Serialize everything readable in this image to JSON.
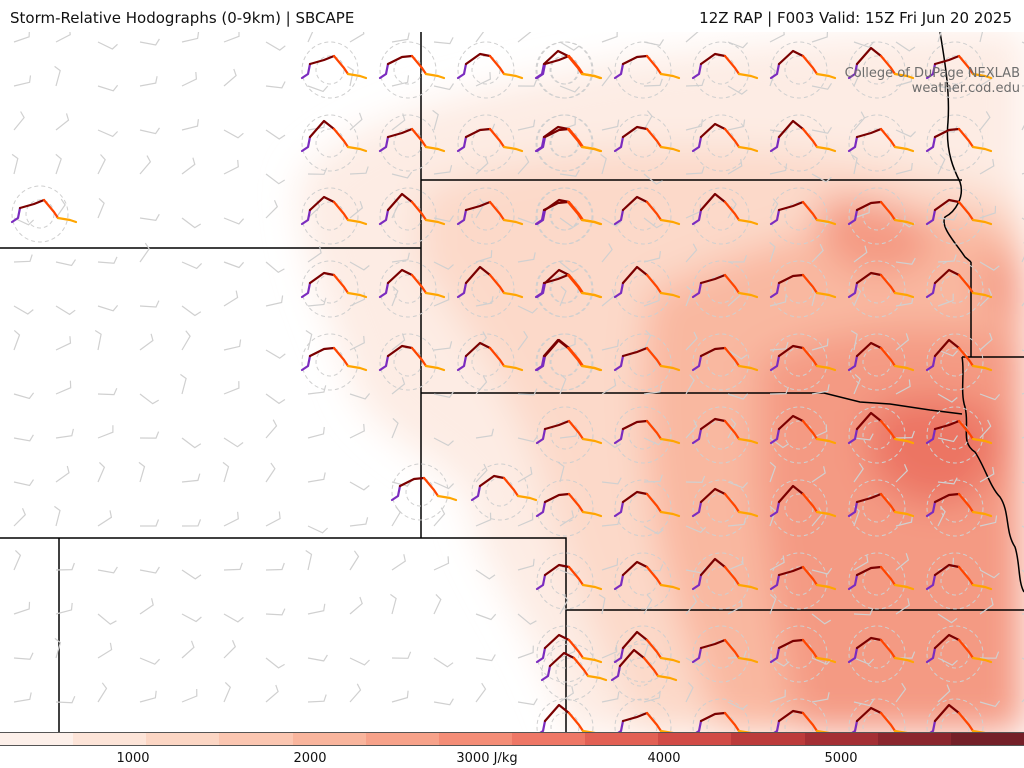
{
  "header": {
    "left_title": "Storm-Relative Hodographs (0-9km) | SBCAPE",
    "right_title": "12Z RAP | F003 Valid: 15Z Fri Jun 20 2025"
  },
  "credit": {
    "line1": "College of DuPage NEXLAB",
    "line2": "weather.cod.edu"
  },
  "colorbar": {
    "unit": "J/kg",
    "colors": [
      "#fdf0ea",
      "#fde4d8",
      "#fcd6c4",
      "#fbc6b1",
      "#f9b59d",
      "#f7a28a",
      "#f48d77",
      "#ee7766",
      "#e26054",
      "#d14b46",
      "#bc3b3b",
      "#a42f34",
      "#8b262e",
      "#742028"
    ],
    "tick_labels": [
      "1000",
      "2000",
      "3000 J/kg",
      "4000",
      "5000"
    ]
  },
  "legend_colors": {
    "layer_0_1km": "#7b2cbf",
    "layer_1_3km": "#7a0000",
    "layer_3_6km": "#ff4500",
    "layer_6_9km": "#ffa500"
  }
}
